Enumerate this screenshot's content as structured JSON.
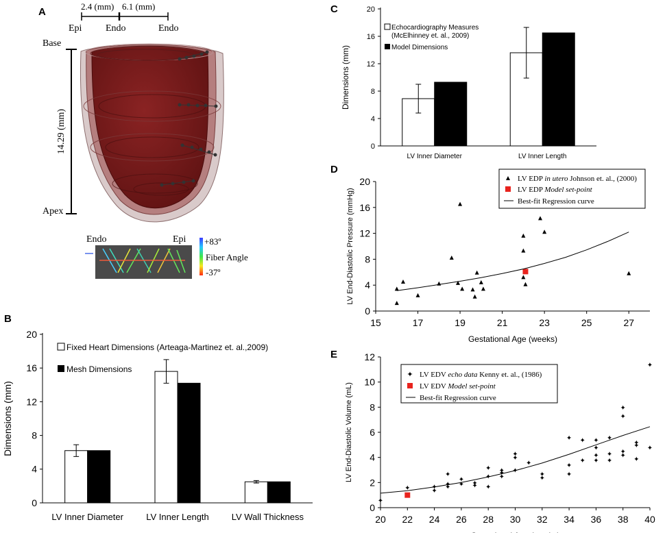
{
  "figure": {
    "panelA": {
      "letter": "A",
      "scale_values": [
        "2.4 (mm)",
        "6.1 (mm)"
      ],
      "scale_labels": [
        "Epi",
        "Endo",
        "Endo"
      ],
      "base_label": "Base",
      "apex_label": "Apex",
      "height_label": "14.29 (mm)",
      "fiber": {
        "endo_label": "Endo",
        "epi_label": "Epi",
        "max_label": "+83º",
        "title": "Fiber Angle",
        "min_label": "-37º"
      }
    },
    "panelB": {
      "letter": "B",
      "legend": [
        "Fixed Heart Dimensions (Arteaga-Martinez et. al.,2009)",
        "Mesh Dimensions"
      ]
    },
    "panelC": {
      "letter": "C",
      "legend": [
        "Echocardiography Measures",
        "(McElhinney et. al., 2009)",
        "Model Dimensions"
      ]
    },
    "panelD": {
      "letter": "D",
      "legend": {
        "l1a": "LV EDP ",
        "l1b": "in utero",
        "l1c": " Johnson et. al., (2000)",
        "l2a": "LV EDP ",
        "l2b": "Model set-point",
        "l3": "Best-fit Regression curve"
      }
    },
    "panelE": {
      "letter": "E",
      "legend": {
        "l1a": "LV EDV ",
        "l1b": "echo data",
        "l1c": " Kenny et. al., (1986)",
        "l2a": "LV EDV ",
        "l2b": "Model set-point",
        "l3": "Best-fit Regression curve"
      }
    }
  },
  "chart_data": [
    {
      "id": "B",
      "type": "bar",
      "categories": [
        "LV Inner Diameter",
        "LV Inner Length",
        "LV Wall Thickness"
      ],
      "series": [
        {
          "name": "Fixed Heart Dimensions (Arteaga-Martinez et. al.,2009)",
          "values": [
            6.2,
            15.6,
            2.5
          ],
          "errors": [
            0.7,
            1.4,
            0.15
          ],
          "color": "#ffffff"
        },
        {
          "name": "Mesh Dimensions",
          "values": [
            6.2,
            14.2,
            2.5
          ],
          "color": "#000000"
        }
      ],
      "title": "",
      "xlabel": "",
      "ylabel": "Dimensions (mm)",
      "ylim": [
        0,
        20
      ],
      "yticks": [
        0,
        4,
        8,
        12,
        16,
        20
      ]
    },
    {
      "id": "C",
      "type": "bar",
      "categories": [
        "LV Inner Diameter",
        "LV Inner Length"
      ],
      "series": [
        {
          "name": "Echocardiography Measures (McElhinney et. al., 2009)",
          "values": [
            6.9,
            13.6
          ],
          "errors": [
            2.1,
            3.7
          ],
          "color": "#ffffff"
        },
        {
          "name": "Model Dimensions",
          "values": [
            9.3,
            16.5
          ],
          "color": "#000000"
        }
      ],
      "title": "",
      "xlabel": "",
      "ylabel": "Dimensions (mm)",
      "ylim": [
        0,
        20
      ],
      "yticks": [
        0,
        4,
        8,
        12,
        16,
        20
      ]
    },
    {
      "id": "D",
      "type": "scatter",
      "title": "",
      "xlabel": "Gestational Age (weeks)",
      "ylabel": "LV End-Diastolic Pressure (mmHg)",
      "xlim": [
        15,
        28
      ],
      "ylim": [
        0,
        20
      ],
      "xticks": [
        15,
        17,
        19,
        21,
        23,
        25,
        27
      ],
      "yticks": [
        0,
        4,
        8,
        12,
        16,
        20
      ],
      "series": [
        {
          "name": "LV EDP in utero Johnson et. al., (2000)",
          "marker": "triangle",
          "points": [
            [
              16,
              1.2
            ],
            [
              16,
              3.4
            ],
            [
              16.3,
              4.5
            ],
            [
              17,
              2.4
            ],
            [
              18,
              4.2
            ],
            [
              18.6,
              8.2
            ],
            [
              18.9,
              4.3
            ],
            [
              19,
              16.5
            ],
            [
              19.1,
              3.4
            ],
            [
              19.6,
              3.3
            ],
            [
              19.7,
              2.2
            ],
            [
              19.8,
              5.9
            ],
            [
              20,
              4.4
            ],
            [
              20.1,
              3.4
            ],
            [
              22,
              5.2
            ],
            [
              22,
              9.3
            ],
            [
              22,
              11.6
            ],
            [
              22.1,
              4.1
            ],
            [
              22.1,
              6.2
            ],
            [
              22.8,
              14.3
            ],
            [
              23,
              12.2
            ],
            [
              27,
              5.8
            ]
          ]
        },
        {
          "name": "LV EDP Model set-point",
          "marker": "square",
          "color": "#e8231e",
          "points": [
            [
              22.1,
              6.1
            ]
          ]
        },
        {
          "name": "Best-fit Regression curve",
          "type": "line",
          "points": [
            [
              16,
              3.15
            ],
            [
              17,
              3.6
            ],
            [
              18,
              4.1
            ],
            [
              19,
              4.6
            ],
            [
              20,
              5.15
            ],
            [
              21,
              5.8
            ],
            [
              22,
              6.5
            ],
            [
              23,
              7.35
            ],
            [
              24,
              8.3
            ],
            [
              25,
              9.45
            ],
            [
              26,
              10.75
            ],
            [
              27,
              12.2
            ]
          ]
        }
      ]
    },
    {
      "id": "E",
      "type": "scatter",
      "title": "",
      "xlabel": "Gestational Age (weeks)",
      "ylabel": "LV End-Diastolic Volume (mL)",
      "xlim": [
        20,
        40
      ],
      "ylim": [
        0,
        12
      ],
      "xticks": [
        20,
        22,
        24,
        26,
        28,
        30,
        32,
        34,
        36,
        38,
        40
      ],
      "yticks": [
        0,
        2,
        4,
        6,
        8,
        10,
        12
      ],
      "series": [
        {
          "name": "LV EDV echo data Kenny et. al., (1986)",
          "marker": "star",
          "points": [
            [
              20,
              0.6
            ],
            [
              22,
              1.0
            ],
            [
              22,
              1.6
            ],
            [
              24,
              1.4
            ],
            [
              24,
              1.7
            ],
            [
              25,
              1.7
            ],
            [
              25,
              1.9
            ],
            [
              25,
              2.7
            ],
            [
              26,
              1.9
            ],
            [
              26,
              2.3
            ],
            [
              27,
              1.8
            ],
            [
              27,
              2.0
            ],
            [
              28,
              1.7
            ],
            [
              28,
              2.5
            ],
            [
              28,
              3.2
            ],
            [
              29,
              2.5
            ],
            [
              29,
              2.8
            ],
            [
              29,
              3.0
            ],
            [
              30,
              3.0
            ],
            [
              30,
              4.0
            ],
            [
              30,
              4.3
            ],
            [
              31,
              3.6
            ],
            [
              32,
              2.4
            ],
            [
              32,
              2.7
            ],
            [
              34,
              2.7
            ],
            [
              34,
              3.4
            ],
            [
              34,
              5.6
            ],
            [
              35,
              3.8
            ],
            [
              35,
              5.4
            ],
            [
              36,
              3.8
            ],
            [
              36,
              4.2
            ],
            [
              36,
              4.8
            ],
            [
              36,
              5.4
            ],
            [
              37,
              3.8
            ],
            [
              37,
              4.3
            ],
            [
              37,
              5.6
            ],
            [
              38,
              4.2
            ],
            [
              38,
              4.5
            ],
            [
              38,
              7.3
            ],
            [
              38,
              8.0
            ],
            [
              39,
              3.9
            ],
            [
              39,
              5.0
            ],
            [
              39,
              5.2
            ],
            [
              40,
              4.8
            ],
            [
              40,
              11.4
            ]
          ]
        },
        {
          "name": "LV EDV Model set-point",
          "marker": "square",
          "color": "#e8231e",
          "points": [
            [
              22,
              1.0
            ]
          ]
        },
        {
          "name": "Best-fit Regression curve",
          "type": "line",
          "points": [
            [
              20,
              1.15
            ],
            [
              22,
              1.35
            ],
            [
              24,
              1.65
            ],
            [
              26,
              2.0
            ],
            [
              28,
              2.45
            ],
            [
              30,
              2.95
            ],
            [
              32,
              3.55
            ],
            [
              34,
              4.25
            ],
            [
              36,
              5.0
            ],
            [
              38,
              5.75
            ],
            [
              40,
              6.45
            ]
          ]
        }
      ]
    }
  ]
}
